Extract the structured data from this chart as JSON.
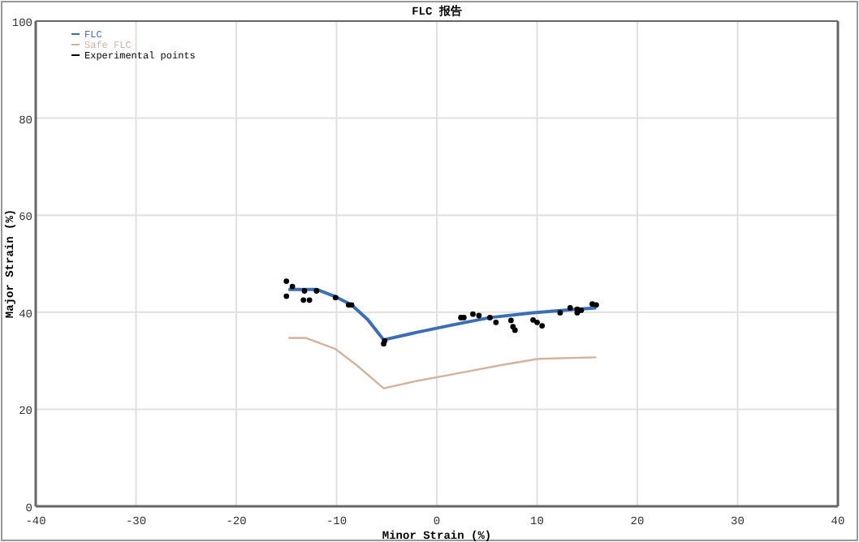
{
  "chart_data": {
    "type": "line",
    "title": "FLC 报告",
    "xlabel": "Minor Strain (%)",
    "ylabel": "Major Strain (%)",
    "xlim": [
      -40,
      40
    ],
    "xticks": [
      -40,
      -30,
      -20,
      -10,
      0,
      10,
      20,
      30,
      40
    ],
    "ylim": [
      0,
      100
    ],
    "yticks": [
      0,
      20,
      40,
      60,
      80,
      100
    ],
    "grid": true,
    "legend": "top left",
    "marker": "none",
    "line_style": "solid",
    "series": [
      {
        "name": "FLC",
        "color": "#3a6fb5",
        "x": [
          -14.8,
          -12.0,
          -10.1,
          -8.5,
          -6.9,
          -5.3,
          -2.1,
          1.6,
          5.3,
          9.6,
          13.3,
          15.9
        ],
        "values": [
          44.7,
          44.7,
          43.2,
          41.5,
          38.5,
          34.3,
          35.8,
          37.4,
          38.9,
          39.9,
          40.5,
          40.9
        ]
      },
      {
        "name": "Safe FLC",
        "color": "#d4b29c",
        "x": [
          -14.8,
          -13.1,
          -10.1,
          -8.0,
          -5.3,
          -2.1,
          2.1,
          6.4,
          10.1,
          15.9
        ],
        "values": [
          34.7,
          34.7,
          32.4,
          29.1,
          24.3,
          25.8,
          27.4,
          29.1,
          30.4,
          30.7
        ]
      },
      {
        "name": "Experimental points",
        "color": "#000000",
        "type": "scatter",
        "marker": "circle",
        "x": [
          -15.0,
          -14.4,
          -15.0,
          -13.2,
          -13.3,
          -12.7,
          -12.0,
          -10.1,
          -8.8,
          -8.5,
          -5.3,
          -5.2,
          2.4,
          2.7,
          3.6,
          4.2,
          5.3,
          5.9,
          7.4,
          7.6,
          7.8,
          9.6,
          10.0,
          10.5,
          12.3,
          13.3,
          14.0,
          14.0,
          14.4,
          15.5,
          15.9
        ],
        "values": [
          46.4,
          45.3,
          43.3,
          44.4,
          42.5,
          42.5,
          44.4,
          43.0,
          41.5,
          41.5,
          33.5,
          34.1,
          38.9,
          38.9,
          39.6,
          39.3,
          38.9,
          37.9,
          38.3,
          37.0,
          36.3,
          38.4,
          37.9,
          37.2,
          39.9,
          40.9,
          40.6,
          39.9,
          40.4,
          41.7,
          41.5
        ]
      }
    ]
  }
}
